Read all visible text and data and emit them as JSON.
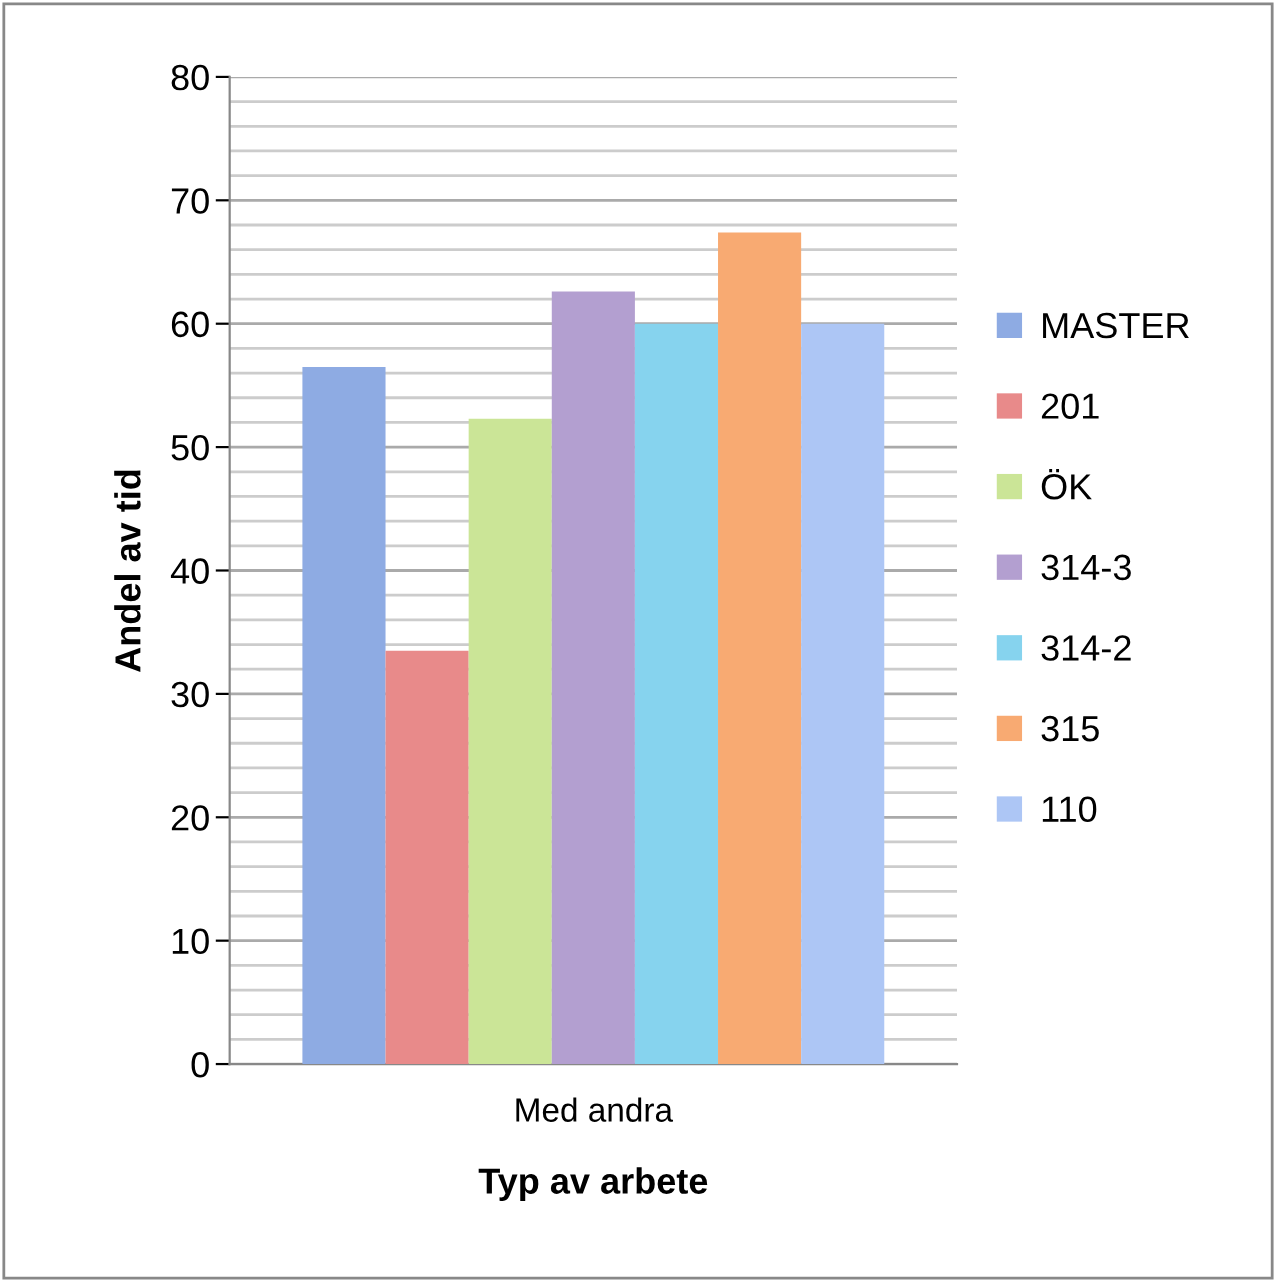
{
  "chart_data": {
    "type": "bar",
    "xlabel": "Typ av arbete",
    "ylabel": "Andel av tid",
    "categories": [
      "Med andra"
    ],
    "series": [
      {
        "name": "MASTER",
        "color": "#8eabe3",
        "values": [
          56.5
        ]
      },
      {
        "name": "201",
        "color": "#e88a8a",
        "values": [
          33.5
        ]
      },
      {
        "name": "ÖK",
        "color": "#cbe597",
        "values": [
          52.3
        ]
      },
      {
        "name": "314-3",
        "color": "#b39fd0",
        "values": [
          62.6
        ]
      },
      {
        "name": "314-2",
        "color": "#86d3ee",
        "values": [
          60
        ]
      },
      {
        "name": "315",
        "color": "#f8aa72",
        "values": [
          67.4
        ]
      },
      {
        "name": "110",
        "color": "#adc6f5",
        "values": [
          60
        ]
      }
    ],
    "ylim": [
      0,
      80
    ],
    "yticks": [
      0,
      {
        "value": 2,
        "label": null
      },
      {
        "value": 4,
        "label": null
      },
      {
        "value": 6,
        "label": null
      },
      {
        "value": 8,
        "label": null
      },
      10,
      {
        "value": 12,
        "label": null
      },
      {
        "value": 14,
        "label": null
      },
      {
        "value": 16,
        "label": null
      },
      {
        "value": 18,
        "label": null
      },
      20,
      {
        "value": 22,
        "label": null
      },
      {
        "value": 24,
        "label": null
      },
      {
        "value": 26,
        "label": null
      },
      {
        "value": 28,
        "label": null
      },
      30,
      {
        "value": 32,
        "label": null
      },
      {
        "value": 34,
        "label": null
      },
      {
        "value": 36,
        "label": null
      },
      {
        "value": 38,
        "label": null
      },
      40,
      {
        "value": 42,
        "label": null
      },
      {
        "value": 44,
        "label": null
      },
      {
        "value": 46,
        "label": null
      },
      {
        "value": 48,
        "label": null
      },
      50,
      {
        "value": 52,
        "label": null
      },
      {
        "value": 54,
        "label": null
      },
      {
        "value": 56,
        "label": null
      },
      {
        "value": 58,
        "label": null
      },
      60,
      {
        "value": 62,
        "label": null
      },
      {
        "value": 64,
        "label": null
      },
      {
        "value": 66,
        "label": null
      },
      {
        "value": 68,
        "label": null
      },
      70,
      {
        "value": 72,
        "label": null
      },
      {
        "value": 74,
        "label": null
      },
      {
        "value": 76,
        "label": null
      },
      {
        "value": 78,
        "label": null
      },
      80
    ],
    "grid": "y",
    "legend": "right"
  }
}
